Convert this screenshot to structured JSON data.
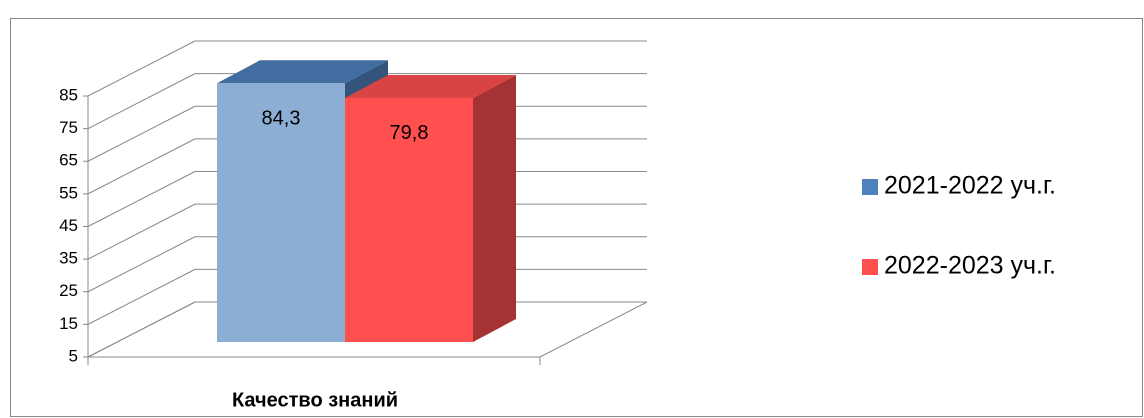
{
  "chart_data": {
    "type": "bar3d",
    "categories": [
      "Качество знаний"
    ],
    "series": [
      {
        "name": "2021-2022 уч.г.",
        "color": "#4f81bd",
        "values": [
          84.3
        ],
        "value_labels": [
          "84,3"
        ]
      },
      {
        "name": "2022-2023 уч.г.",
        "color": "#ff4f4f",
        "values": [
          79.8
        ],
        "value_labels": [
          "79,8"
        ]
      }
    ],
    "ylim": [
      5,
      85
    ],
    "yticks": [
      5,
      15,
      25,
      35,
      45,
      55,
      65,
      75,
      85
    ],
    "grid": true,
    "legend": "right"
  }
}
